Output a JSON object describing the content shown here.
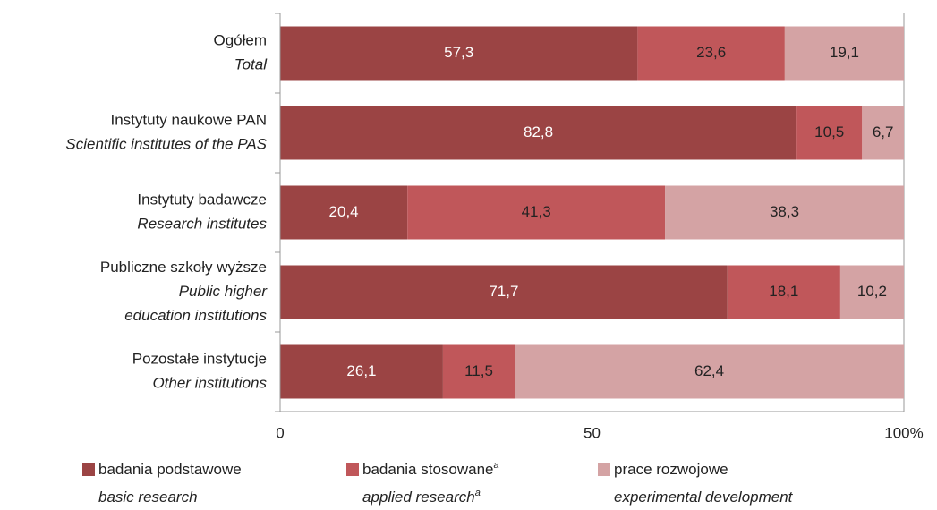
{
  "chart_data": {
    "type": "stacked-barh",
    "categories": [
      {
        "pl": "Ogółem",
        "en": [
          "Total"
        ]
      },
      {
        "pl": "Instytuty naukowe PAN",
        "en": [
          "Scientific institutes of the PAS"
        ]
      },
      {
        "pl": "Instytuty badawcze",
        "en": [
          "Research institutes"
        ]
      },
      {
        "pl": "Publiczne szkoły wyższe",
        "en": [
          "Public higher",
          "education institutions"
        ]
      },
      {
        "pl": "Pozostałe instytucje",
        "en": [
          "Other institutions"
        ]
      }
    ],
    "series": [
      {
        "name": "badania podstawowe",
        "name_en": "basic research",
        "color": "#9b4444",
        "values": [
          57.3,
          82.8,
          20.4,
          71.7,
          26.1
        ],
        "value_labels": [
          "57,3",
          "82,8",
          "20,4",
          "71,7",
          "26,1"
        ]
      },
      {
        "name": "badania stosowane",
        "name_en": "applied research",
        "footnote": "a",
        "color": "#c0575a",
        "values": [
          23.6,
          10.5,
          41.3,
          18.1,
          11.5
        ],
        "value_labels": [
          "23,6",
          "10,5",
          "41,3",
          "18,1",
          "11,5"
        ]
      },
      {
        "name": "prace rozwojowe",
        "name_en": "experimental development",
        "color": "#d4a3a4",
        "values": [
          19.1,
          6.7,
          38.3,
          10.2,
          62.4
        ],
        "value_labels": [
          "19,1",
          "6,7",
          "38,3",
          "10,2",
          "62,4"
        ]
      }
    ],
    "xlim": [
      0,
      100
    ],
    "xticks": [
      0,
      50,
      {
        "value": 100,
        "label": "100%"
      }
    ],
    "grid": true
  }
}
